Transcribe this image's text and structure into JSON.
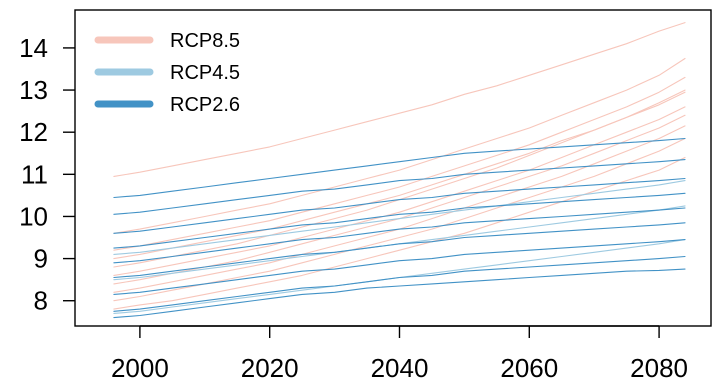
{
  "chart_data": {
    "type": "line",
    "title": "",
    "xlabel": "",
    "ylabel": "",
    "xlim": [
      1990,
      2088
    ],
    "ylim": [
      7.4,
      14.9
    ],
    "x_ticks": [
      "2000",
      "2020",
      "2040",
      "2060",
      "2080"
    ],
    "y_ticks": [
      "8",
      "9",
      "10",
      "11",
      "12",
      "13",
      "14"
    ],
    "grid": false,
    "legend_position": "top-left",
    "x": [
      1996,
      2000,
      2005,
      2010,
      2015,
      2020,
      2025,
      2030,
      2035,
      2040,
      2045,
      2050,
      2055,
      2060,
      2065,
      2070,
      2075,
      2080,
      2084
    ],
    "series": [
      {
        "name": "RCP8.5",
        "color": "#f7c6bb",
        "line_width": 7,
        "values": [
          [
            10.95,
            11.05,
            11.2,
            11.35,
            11.5,
            11.65,
            11.85,
            12.05,
            12.25,
            12.45,
            12.65,
            12.9,
            13.1,
            13.35,
            13.6,
            13.85,
            14.1,
            14.4,
            14.6
          ],
          [
            9.6,
            9.7,
            9.85,
            10.0,
            10.15,
            10.3,
            10.5,
            10.7,
            10.9,
            11.1,
            11.35,
            11.6,
            11.85,
            12.1,
            12.4,
            12.7,
            13.0,
            13.35,
            13.75
          ],
          [
            9.2,
            9.3,
            9.45,
            9.6,
            9.75,
            9.9,
            10.1,
            10.3,
            10.5,
            10.7,
            10.95,
            11.2,
            11.45,
            11.7,
            12.0,
            12.3,
            12.6,
            12.95,
            13.3
          ],
          [
            8.8,
            8.9,
            9.05,
            9.2,
            9.35,
            9.55,
            9.75,
            9.95,
            10.15,
            10.4,
            10.65,
            10.9,
            11.15,
            11.45,
            11.75,
            12.05,
            12.35,
            12.7,
            13.0
          ],
          [
            9.0,
            9.1,
            9.25,
            9.4,
            9.55,
            9.7,
            9.9,
            10.1,
            10.3,
            10.5,
            10.75,
            11.0,
            11.25,
            11.5,
            11.8,
            12.05,
            12.35,
            12.65,
            12.95
          ],
          [
            8.6,
            8.7,
            8.85,
            9.0,
            9.15,
            9.3,
            9.5,
            9.7,
            9.9,
            10.1,
            10.35,
            10.6,
            10.85,
            11.1,
            11.4,
            11.7,
            12.0,
            12.3,
            12.6
          ],
          [
            8.4,
            8.5,
            8.65,
            8.8,
            8.95,
            9.15,
            9.35,
            9.55,
            9.75,
            9.95,
            10.2,
            10.45,
            10.7,
            10.95,
            11.2,
            11.5,
            11.8,
            12.1,
            12.4
          ],
          [
            8.2,
            8.3,
            8.45,
            8.6,
            8.75,
            8.9,
            9.1,
            9.3,
            9.5,
            9.7,
            9.95,
            10.2,
            10.45,
            10.7,
            10.95,
            11.25,
            11.55,
            11.85,
            12.15
          ],
          [
            8.0,
            8.1,
            8.25,
            8.4,
            8.55,
            8.7,
            8.9,
            9.1,
            9.3,
            9.5,
            9.7,
            9.95,
            10.2,
            10.45,
            10.7,
            10.95,
            11.25,
            11.55,
            11.85
          ],
          [
            7.8,
            7.9,
            8.0,
            8.15,
            8.3,
            8.45,
            8.6,
            8.8,
            9.0,
            9.2,
            9.4,
            9.6,
            9.85,
            10.1,
            10.35,
            10.6,
            10.85,
            11.1,
            11.4
          ]
        ]
      },
      {
        "name": "RCP4.5",
        "color": "#9ecae1",
        "line_width": 7,
        "values": [
          [
            9.1,
            9.15,
            9.25,
            9.35,
            9.45,
            9.55,
            9.65,
            9.75,
            9.85,
            9.95,
            10.05,
            10.15,
            10.25,
            10.35,
            10.45,
            10.55,
            10.65,
            10.75,
            10.85
          ],
          [
            8.5,
            8.55,
            8.65,
            8.75,
            8.85,
            8.95,
            9.05,
            9.15,
            9.25,
            9.35,
            9.45,
            9.55,
            9.65,
            9.75,
            9.85,
            9.95,
            10.05,
            10.15,
            10.25
          ],
          [
            7.7,
            7.75,
            7.85,
            7.95,
            8.05,
            8.15,
            8.25,
            8.35,
            8.45,
            8.55,
            8.65,
            8.75,
            8.85,
            8.95,
            9.05,
            9.15,
            9.25,
            9.35,
            9.45
          ]
        ]
      },
      {
        "name": "RCP2.6",
        "color": "#4292c6",
        "line_width": 7,
        "values": [
          [
            10.45,
            10.5,
            10.6,
            10.7,
            10.8,
            10.9,
            11.0,
            11.1,
            11.2,
            11.3,
            11.4,
            11.5,
            11.55,
            11.6,
            11.65,
            11.7,
            11.75,
            11.8,
            11.85
          ],
          [
            10.05,
            10.1,
            10.2,
            10.3,
            10.4,
            10.5,
            10.6,
            10.65,
            10.75,
            10.85,
            10.9,
            11.0,
            11.05,
            11.1,
            11.15,
            11.2,
            11.25,
            11.3,
            11.35
          ],
          [
            9.6,
            9.65,
            9.75,
            9.85,
            9.95,
            10.05,
            10.15,
            10.2,
            10.3,
            10.4,
            10.45,
            10.55,
            10.6,
            10.65,
            10.7,
            10.75,
            10.8,
            10.85,
            10.9
          ],
          [
            9.25,
            9.3,
            9.4,
            9.5,
            9.6,
            9.7,
            9.8,
            9.85,
            9.95,
            10.05,
            10.1,
            10.2,
            10.25,
            10.3,
            10.35,
            10.4,
            10.45,
            10.5,
            10.55
          ],
          [
            8.9,
            8.95,
            9.05,
            9.15,
            9.25,
            9.35,
            9.45,
            9.5,
            9.6,
            9.7,
            9.75,
            9.85,
            9.9,
            9.95,
            10.0,
            10.05,
            10.1,
            10.15,
            10.2
          ],
          [
            8.55,
            8.6,
            8.7,
            8.8,
            8.9,
            9.0,
            9.1,
            9.15,
            9.25,
            9.35,
            9.4,
            9.5,
            9.55,
            9.6,
            9.65,
            9.7,
            9.75,
            9.8,
            9.85
          ],
          [
            8.15,
            8.2,
            8.3,
            8.4,
            8.5,
            8.6,
            8.7,
            8.75,
            8.85,
            8.95,
            9.0,
            9.1,
            9.15,
            9.2,
            9.25,
            9.3,
            9.35,
            9.4,
            9.45
          ],
          [
            7.75,
            7.8,
            7.9,
            8.0,
            8.1,
            8.2,
            8.3,
            8.35,
            8.45,
            8.55,
            8.6,
            8.7,
            8.75,
            8.8,
            8.85,
            8.9,
            8.95,
            9.0,
            9.05
          ],
          [
            7.6,
            7.65,
            7.75,
            7.85,
            7.95,
            8.05,
            8.15,
            8.2,
            8.3,
            8.35,
            8.4,
            8.45,
            8.5,
            8.55,
            8.6,
            8.65,
            8.7,
            8.72,
            8.75
          ]
        ]
      }
    ]
  }
}
